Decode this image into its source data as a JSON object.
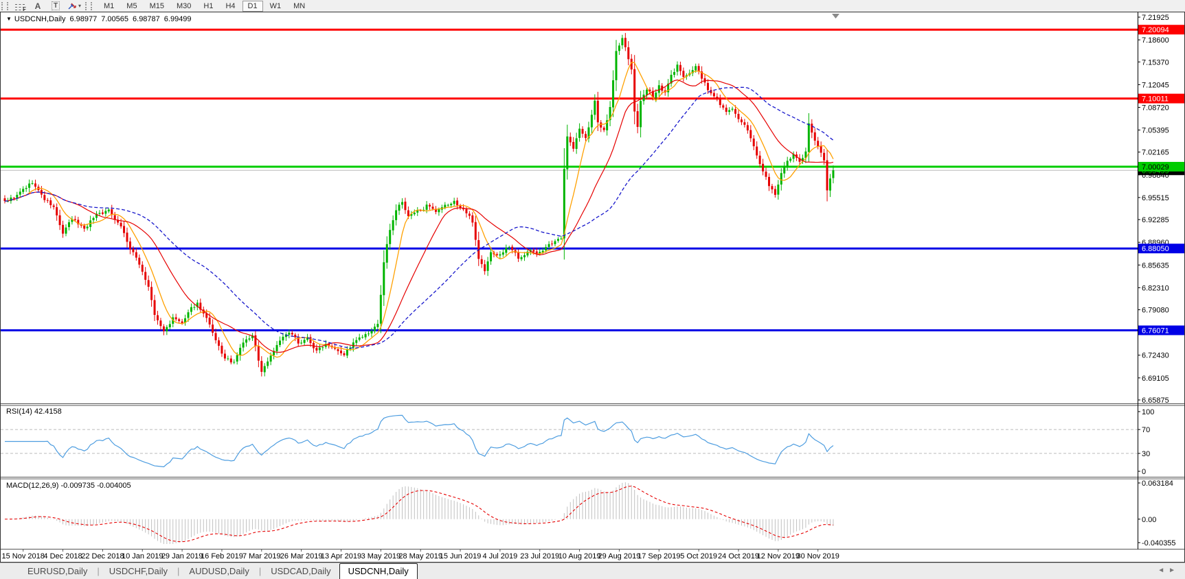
{
  "toolbar": {
    "tools": [
      {
        "name": "fibonacci-tool",
        "glyph": "F"
      },
      {
        "name": "text-tool",
        "glyph": "A"
      },
      {
        "name": "text-label-tool",
        "glyph": "T"
      },
      {
        "name": "arrows-tool",
        "glyph": "",
        "has_dropdown": true,
        "dropdown_glyph": "▾"
      }
    ],
    "timeframes": [
      "M1",
      "M5",
      "M15",
      "M30",
      "H1",
      "H4",
      "D1",
      "W1",
      "MN"
    ],
    "active_timeframe": "D1"
  },
  "chart_header": {
    "dropdown_glyph": "▼",
    "symbol": "USDCNH,Daily",
    "open": "6.98977",
    "high": "7.00565",
    "low": "6.98787",
    "close": "6.99499"
  },
  "price_axis": {
    "ticks": [
      "7.21925",
      "7.18600",
      "7.15370",
      "7.12045",
      "7.08720",
      "7.05395",
      "7.02165",
      "6.98840",
      "6.95515",
      "6.92285",
      "6.88960",
      "6.85635",
      "6.82310",
      "6.79080",
      "6.75755",
      "6.72430",
      "6.69105",
      "6.65875"
    ]
  },
  "levels": [
    {
      "price": 7.20094,
      "label": "7.20094",
      "kind": "resistance",
      "color_key": "level_red",
      "fg": "#ffffff",
      "width": 3
    },
    {
      "price": 7.10011,
      "label": "7.10011",
      "kind": "resistance",
      "color_key": "level_red",
      "fg": "#ffffff",
      "width": 3
    },
    {
      "price": 6.99499,
      "label": "6.99499",
      "kind": "bid",
      "width": 1
    },
    {
      "price": 7.00029,
      "label": "7.00029",
      "kind": "pivot",
      "color_key": "level_green",
      "fg": "#000000",
      "width": 3
    },
    {
      "price": 6.8805,
      "label": "6.88050",
      "kind": "support",
      "color_key": "level_blue",
      "fg": "#ffffff",
      "width": 3
    },
    {
      "price": 6.76071,
      "label": "6.76071",
      "kind": "support",
      "color_key": "level_blue",
      "fg": "#ffffff",
      "width": 3
    }
  ],
  "rsi_panel": {
    "label": "RSI(14)",
    "value": "42.4158",
    "ticks": [
      "100",
      "70",
      "30",
      "0"
    ],
    "tick_values": [
      100,
      70,
      30,
      0
    ],
    "guides": [
      70,
      30
    ]
  },
  "macd_panel": {
    "label": "MACD(12,26,9)",
    "value_main": "-0.009735",
    "value_signal": "-0.004005",
    "ticks": [
      "0.063184",
      "0.00",
      "-0.040355"
    ],
    "tick_values": [
      0.063184,
      0,
      -0.040355
    ]
  },
  "date_axis": [
    "15 Nov 2018",
    "4 Dec 2018",
    "22 Dec 2018",
    "10 Jan 2019",
    "29 Jan 2019",
    "16 Feb 2019",
    "7 Mar 2019",
    "26 Mar 2019",
    "13 Apr 2019",
    "3 May 2019",
    "28 May 2019",
    "15 Jun 2019",
    "4 Jul 2019",
    "23 Jul 2019",
    "10 Aug 2019",
    "29 Aug 2019",
    "17 Sep 2019",
    "5 Oct 2019",
    "24 Oct 2019",
    "12 Nov 2019",
    "30 Nov 2019"
  ],
  "tabs": {
    "items": [
      "EURUSD,Daily",
      "USDCHF,Daily",
      "AUDUSD,Daily",
      "USDCAD,Daily",
      "USDCNH,Daily"
    ],
    "active": "USDCNH,Daily",
    "nav_left": "◄",
    "nav_right": "►"
  },
  "colors": {
    "up": "#00b400",
    "down": "#e60000",
    "ma_fast": "#ffa000",
    "ma_mid": "#e60000",
    "ma_slow": "#1818cc",
    "level_red": "#fe0000",
    "level_green": "#00cc00",
    "level_blue": "#0000e6",
    "bid_line": "#b8b8b8",
    "bid_label_bg": "#000000",
    "bid_label_fg": "#00d200",
    "rsi_line": "#4d9de0",
    "guide": "#bbbbbb",
    "macd_hist": "#c0c0c0",
    "macd_signal": "#e60000",
    "axis_text": "#000000"
  },
  "chart_data": {
    "type": "candlestick-ohlc",
    "symbol": "USDCNH",
    "timeframe": "Daily",
    "n_bars": 272,
    "axis_top": 7.21925,
    "axis_bottom": 6.65875,
    "first_bar_label": "15 Nov 2018",
    "last_bar_label_region": "30 Nov 2019",
    "last_close": 6.99499,
    "close_anchors": [
      [
        0,
        6.95
      ],
      [
        4,
        6.958
      ],
      [
        9,
        6.977
      ],
      [
        13,
        6.952
      ],
      [
        16,
        6.94
      ],
      [
        19,
        6.902
      ],
      [
        22,
        6.922
      ],
      [
        26,
        6.91
      ],
      [
        30,
        6.932
      ],
      [
        34,
        6.936
      ],
      [
        38,
        6.915
      ],
      [
        41,
        6.88
      ],
      [
        44,
        6.858
      ],
      [
        47,
        6.825
      ],
      [
        49,
        6.782
      ],
      [
        52,
        6.758
      ],
      [
        55,
        6.778
      ],
      [
        58,
        6.77
      ],
      [
        61,
        6.79
      ],
      [
        63,
        6.8
      ],
      [
        66,
        6.778
      ],
      [
        69,
        6.742
      ],
      [
        72,
        6.718
      ],
      [
        75,
        6.712
      ],
      [
        78,
        6.742
      ],
      [
        81,
        6.752
      ],
      [
        84,
        6.7
      ],
      [
        87,
        6.724
      ],
      [
        90,
        6.748
      ],
      [
        93,
        6.756
      ],
      [
        96,
        6.742
      ],
      [
        99,
        6.75
      ],
      [
        102,
        6.73
      ],
      [
        105,
        6.742
      ],
      [
        108,
        6.738
      ],
      [
        111,
        6.728
      ],
      [
        114,
        6.742
      ],
      [
        117,
        6.75
      ],
      [
        120,
        6.756
      ],
      [
        122,
        6.768
      ],
      [
        124,
        6.858
      ],
      [
        126,
        6.908
      ],
      [
        128,
        6.938
      ],
      [
        130,
        6.948
      ],
      [
        132,
        6.926
      ],
      [
        135,
        6.934
      ],
      [
        138,
        6.944
      ],
      [
        141,
        6.93
      ],
      [
        144,
        6.94
      ],
      [
        147,
        6.948
      ],
      [
        150,
        6.938
      ],
      [
        153,
        6.92
      ],
      [
        155,
        6.868
      ],
      [
        157,
        6.848
      ],
      [
        159,
        6.874
      ],
      [
        162,
        6.872
      ],
      [
        165,
        6.884
      ],
      [
        168,
        6.868
      ],
      [
        171,
        6.878
      ],
      [
        174,
        6.874
      ],
      [
        177,
        6.882
      ],
      [
        180,
        6.888
      ],
      [
        182,
        6.896
      ],
      [
        183,
        7.0
      ],
      [
        184,
        7.048
      ],
      [
        186,
        7.026
      ],
      [
        188,
        7.056
      ],
      [
        190,
        7.04
      ],
      [
        192,
        7.078
      ],
      [
        193,
        7.095
      ],
      [
        194,
        7.062
      ],
      [
        196,
        7.052
      ],
      [
        198,
        7.088
      ],
      [
        200,
        7.17
      ],
      [
        202,
        7.188
      ],
      [
        203,
        7.175
      ],
      [
        205,
        7.14
      ],
      [
        206,
        7.078
      ],
      [
        207,
        7.058
      ],
      [
        208,
        7.098
      ],
      [
        210,
        7.11
      ],
      [
        212,
        7.102
      ],
      [
        214,
        7.12
      ],
      [
        216,
        7.108
      ],
      [
        218,
        7.132
      ],
      [
        220,
        7.148
      ],
      [
        222,
        7.128
      ],
      [
        224,
        7.14
      ],
      [
        226,
        7.148
      ],
      [
        228,
        7.13
      ],
      [
        230,
        7.112
      ],
      [
        232,
        7.102
      ],
      [
        234,
        7.092
      ],
      [
        236,
        7.08
      ],
      [
        238,
        7.086
      ],
      [
        240,
        7.068
      ],
      [
        242,
        7.058
      ],
      [
        244,
        7.042
      ],
      [
        246,
        7.02
      ],
      [
        248,
        6.994
      ],
      [
        250,
        6.974
      ],
      [
        252,
        6.96
      ],
      [
        254,
        6.988
      ],
      [
        256,
        7.004
      ],
      [
        258,
        7.016
      ],
      [
        260,
        7.008
      ],
      [
        262,
        7.024
      ],
      [
        263,
        7.066
      ],
      [
        264,
        7.05
      ],
      [
        265,
        7.036
      ],
      [
        266,
        7.028
      ],
      [
        267,
        7.018
      ],
      [
        268,
        7.008
      ],
      [
        269,
        6.966
      ],
      [
        270,
        6.985
      ],
      [
        271,
        6.99499
      ]
    ],
    "moving_averages": [
      {
        "name": "fast-ma",
        "approx_period": 8,
        "color_key": "ma_fast",
        "style": "solid"
      },
      {
        "name": "mid-ma",
        "approx_period": 21,
        "color_key": "ma_mid",
        "style": "solid"
      },
      {
        "name": "slow-ma",
        "approx_period": 45,
        "color_key": "ma_slow",
        "style": "dashed"
      }
    ],
    "rsi": {
      "period": 14,
      "last_value": 42.4158,
      "overbought": 70,
      "oversold": 30,
      "range": [
        0,
        100
      ]
    },
    "macd": {
      "fast": 12,
      "slow": 26,
      "signal": 9,
      "last_main": -0.009735,
      "last_signal": -0.004005,
      "scale_max": 0.063184,
      "scale_min": -0.040355
    },
    "grid": "off",
    "legend": "none"
  }
}
